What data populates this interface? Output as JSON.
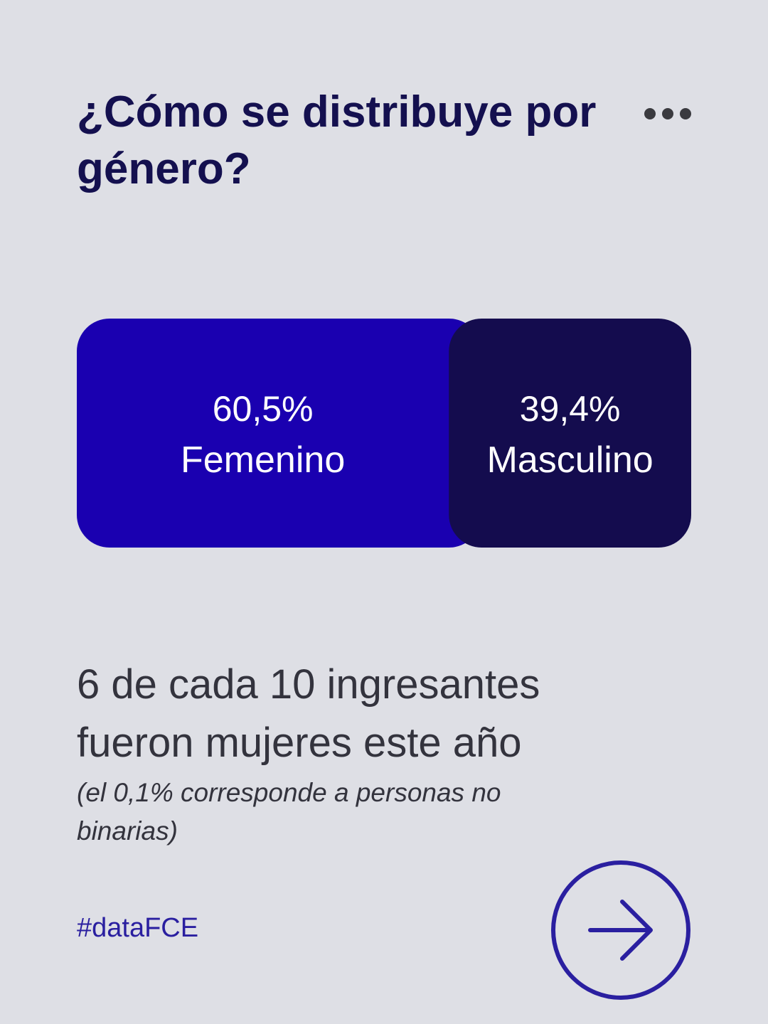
{
  "chart_data": {
    "type": "stacked-bar",
    "title": "¿Cómo se distribuye por género?",
    "categories": [
      "Femenino",
      "Masculino"
    ],
    "values": [
      60.5,
      39.4
    ],
    "value_labels": [
      "60,5%",
      "39,4%"
    ],
    "colors": [
      "#1a00b0",
      "#140c4e"
    ]
  },
  "caption": "6 de cada 10 ingresantes fueron mujeres este año",
  "note": "(el 0,1% corresponde a personas no binarias)",
  "hashtag": "#dataFCE"
}
